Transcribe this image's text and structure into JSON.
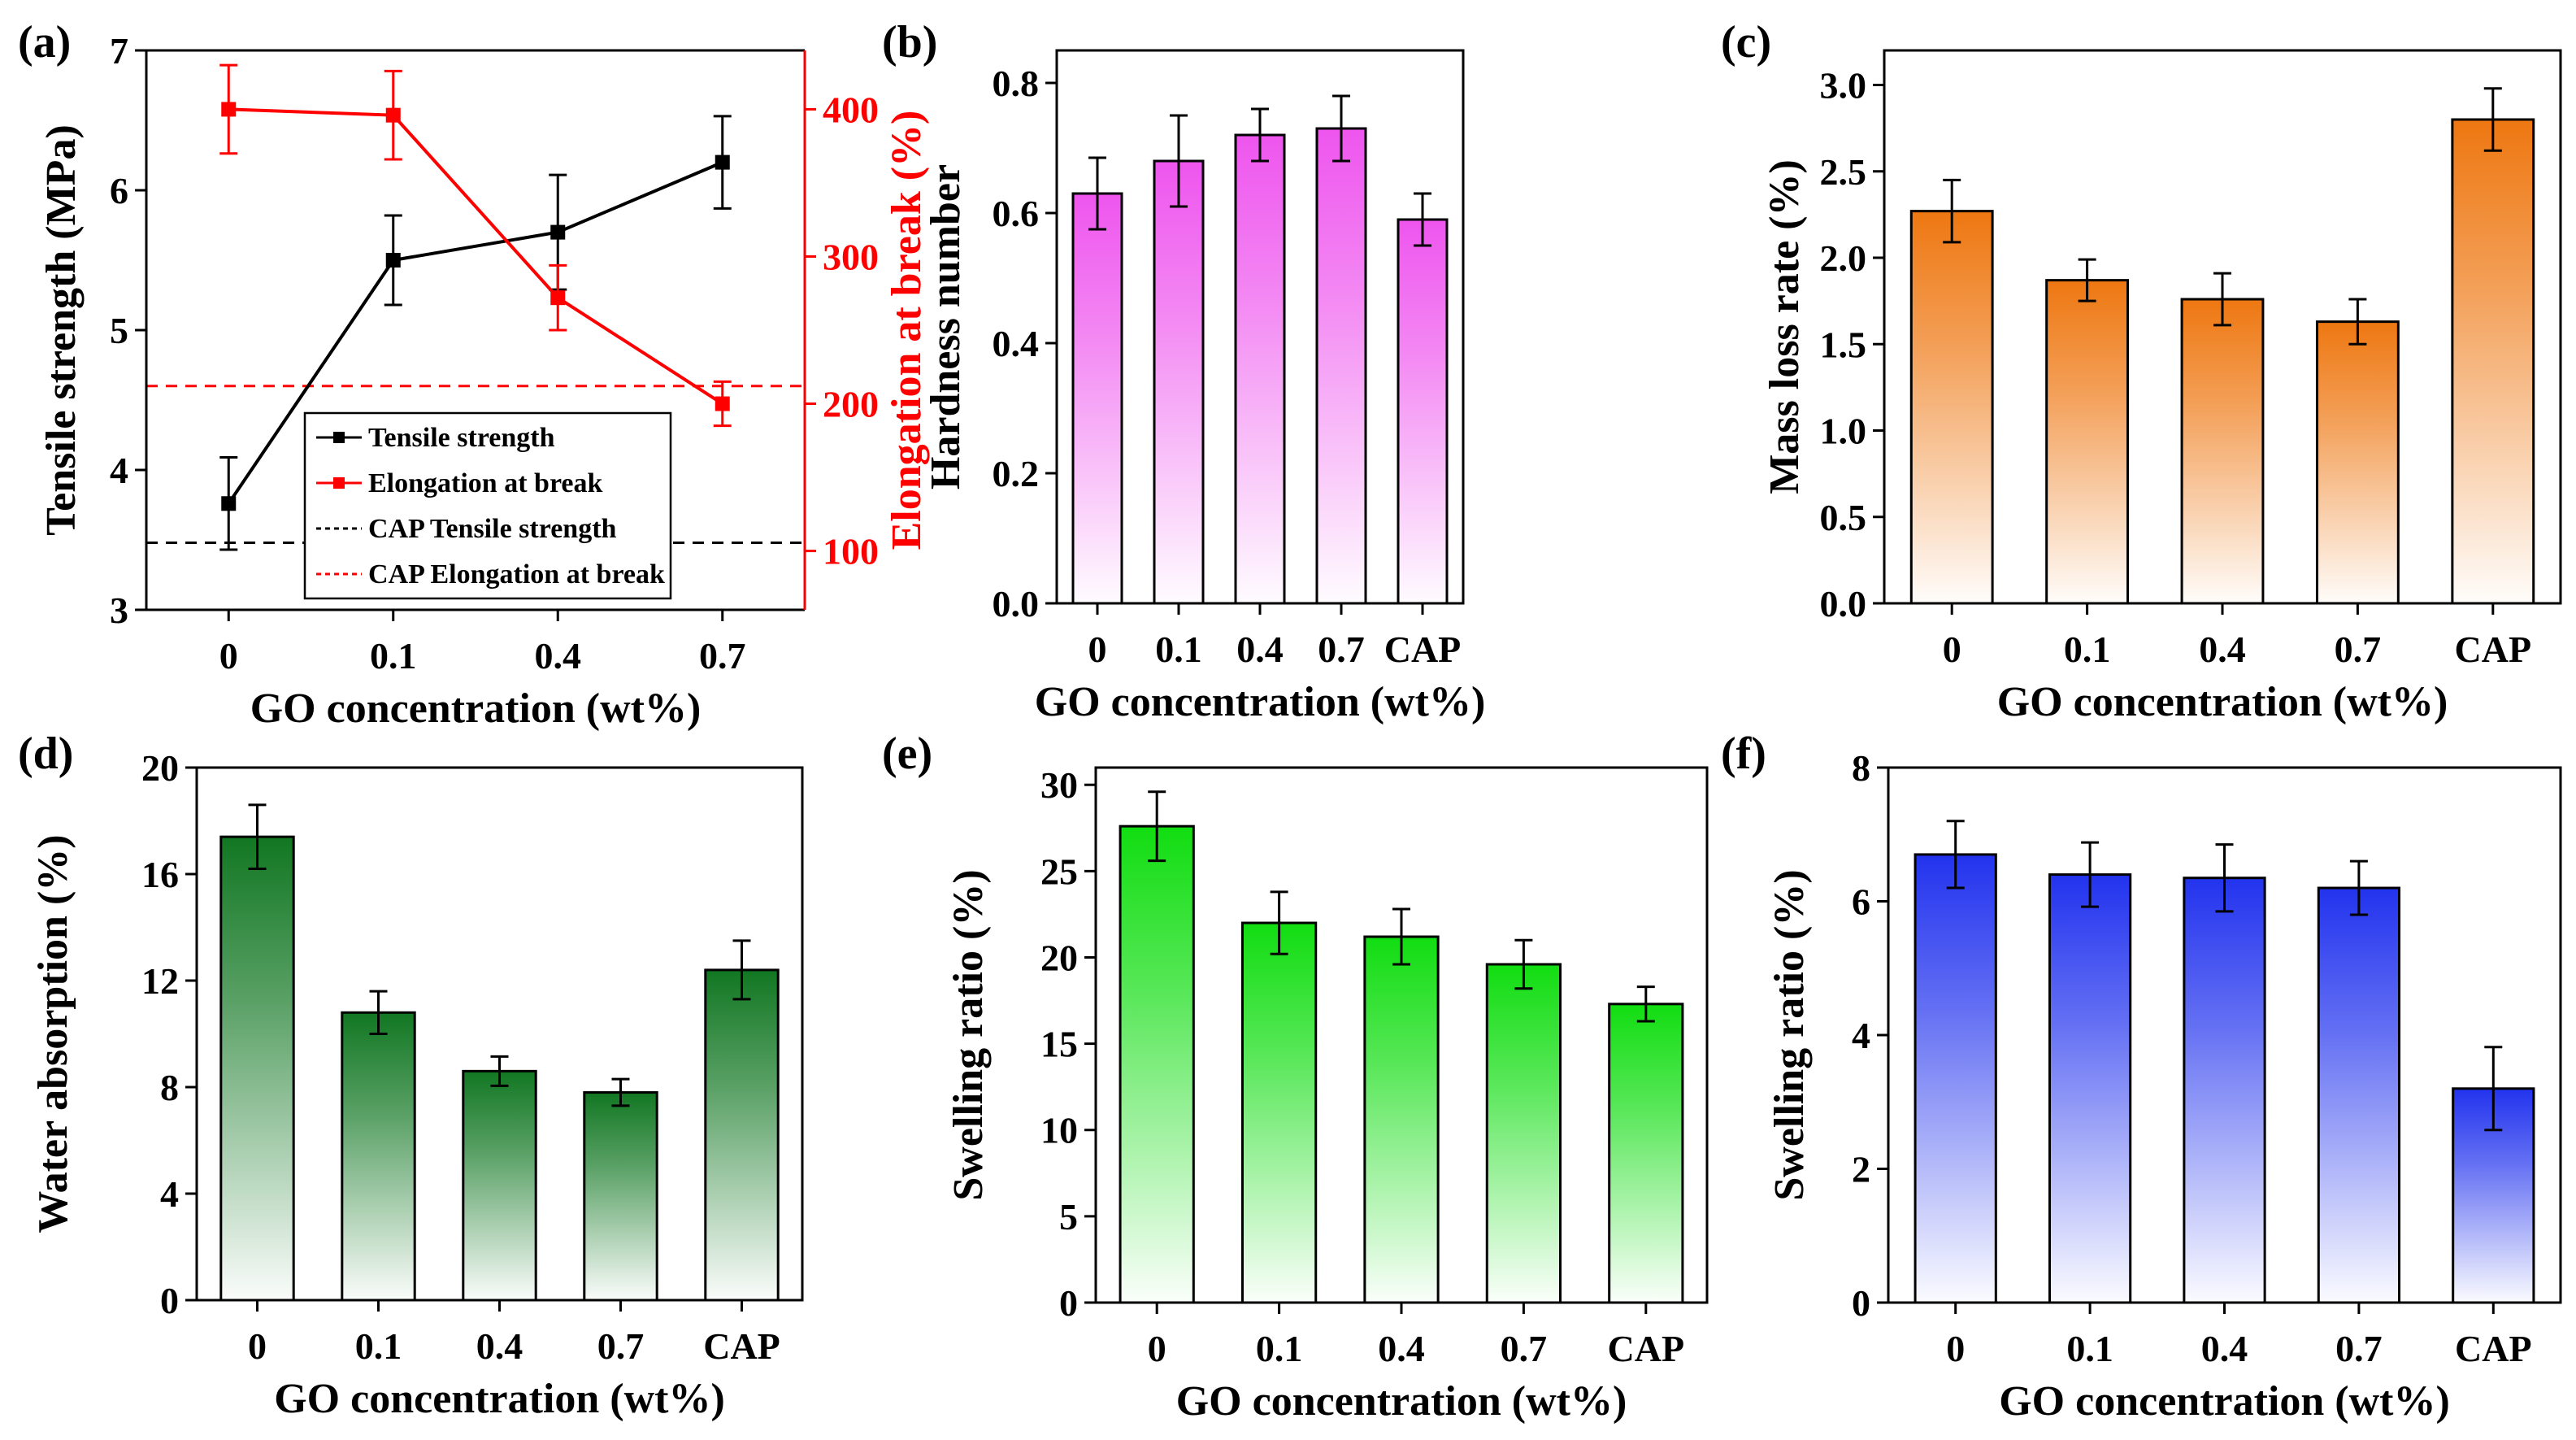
{
  "chart_data": [
    {
      "panel": "(a)",
      "type": "line",
      "xlabel": "GO concentration (wt%)",
      "categories": [
        "0",
        "0.1",
        "0.4",
        "0.7"
      ],
      "ylabel_left": "Tensile strength (MPa)",
      "ylabel_right": "Elongation at break (%)",
      "ylim_left": [
        3,
        7
      ],
      "yticks_left": [
        "3",
        "4",
        "5",
        "6",
        "7"
      ],
      "ylim_right": [
        60,
        440
      ],
      "yticks_right": [
        "100",
        "200",
        "300",
        "400"
      ],
      "series": [
        {
          "name": "Tensile strength",
          "axis": "left",
          "color": "#000000",
          "values": [
            3.76,
            5.5,
            5.7,
            6.2
          ],
          "errors": [
            0.33,
            0.32,
            0.41,
            0.33
          ]
        },
        {
          "name": "Elongation at break",
          "axis": "right",
          "color": "#ff0000",
          "values": [
            400,
            396,
            272,
            200
          ],
          "errors": [
            30,
            30,
            22,
            15
          ]
        }
      ],
      "reference_lines": [
        {
          "name": "CAP Tensile strength",
          "axis": "left",
          "value": 3.48,
          "color": "#000000"
        },
        {
          "name": "CAP Elongation at break",
          "axis": "right",
          "value": 212,
          "color": "#ff0000"
        }
      ],
      "legend": "lower-right"
    },
    {
      "panel": "(b)",
      "type": "bar",
      "xlabel": "GO concentration (wt%)",
      "ylabel": "Hardness number",
      "categories": [
        "0",
        "0.1",
        "0.4",
        "0.7",
        "CAP"
      ],
      "values": [
        0.63,
        0.68,
        0.72,
        0.73,
        0.59
      ],
      "errors": [
        0.055,
        0.07,
        0.04,
        0.05,
        0.04
      ],
      "ylim": [
        0,
        0.85
      ],
      "yticks": [
        "0.0",
        "0.2",
        "0.4",
        "0.6",
        "0.8"
      ],
      "color": "#ee55ee"
    },
    {
      "panel": "(c)",
      "type": "bar",
      "xlabel": "GO concentration (wt%)",
      "ylabel": "Mass loss rate (%)",
      "categories": [
        "0",
        "0.1",
        "0.4",
        "0.7",
        "CAP"
      ],
      "values": [
        2.27,
        1.87,
        1.76,
        1.63,
        2.8
      ],
      "errors": [
        0.18,
        0.12,
        0.15,
        0.13,
        0.18
      ],
      "ylim": [
        0,
        3.2
      ],
      "yticks": [
        "0.0",
        "0.5",
        "1.0",
        "1.5",
        "2.0",
        "2.5",
        "3.0"
      ],
      "color": "#ee7711"
    },
    {
      "panel": "(d)",
      "type": "bar",
      "xlabel": "GO concentration (wt%)",
      "ylabel": "Water absorption (%)",
      "categories": [
        "0",
        "0.1",
        "0.4",
        "0.7",
        "CAP"
      ],
      "values": [
        17.4,
        10.8,
        8.6,
        7.8,
        12.4
      ],
      "errors": [
        1.2,
        0.8,
        0.55,
        0.5,
        1.1
      ],
      "ylim": [
        0,
        20
      ],
      "yticks": [
        "0",
        "4",
        "8",
        "12",
        "16",
        "20"
      ],
      "color": "#117722"
    },
    {
      "panel": "(e)",
      "type": "bar",
      "xlabel": "GO concentration (wt%)",
      "ylabel": "Swelling ratio (%)",
      "categories": [
        "0",
        "0.1",
        "0.4",
        "0.7",
        "CAP"
      ],
      "values": [
        27.6,
        22.0,
        21.2,
        19.6,
        17.3
      ],
      "errors": [
        2.0,
        1.8,
        1.6,
        1.4,
        1.0
      ],
      "ylim": [
        0,
        31
      ],
      "yticks": [
        "0",
        "5",
        "10",
        "15",
        "20",
        "25",
        "30"
      ],
      "color": "#11dd11"
    },
    {
      "panel": "(f)",
      "type": "bar",
      "xlabel": "GO concentration (wt%)",
      "ylabel": "Swelling ratio (%)",
      "categories": [
        "0",
        "0.1",
        "0.4",
        "0.7",
        "CAP"
      ],
      "values": [
        6.7,
        6.4,
        6.35,
        6.2,
        3.2
      ],
      "errors": [
        0.5,
        0.48,
        0.5,
        0.4,
        0.62
      ],
      "ylim": [
        0,
        8
      ],
      "yticks": [
        "0",
        "2",
        "4",
        "6",
        "8"
      ],
      "color": "#2233ee"
    }
  ]
}
